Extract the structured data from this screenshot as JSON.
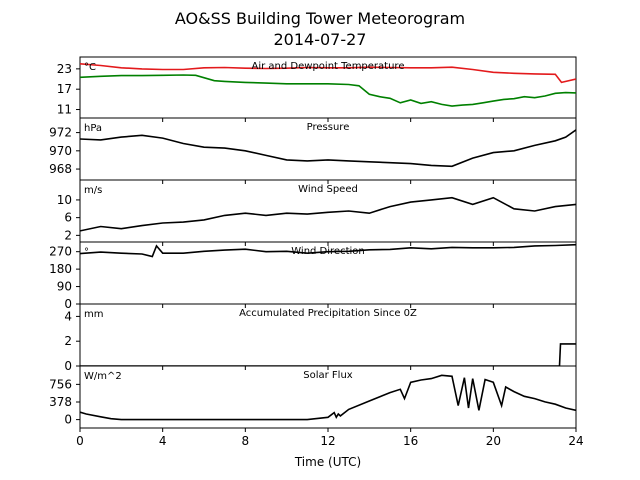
{
  "figure": {
    "title_line1": "AO&SS Building Tower Meteorogram",
    "title_line2": "2014-07-27",
    "xlabel": "Time (UTC)",
    "xlim": [
      0,
      24
    ],
    "xticks": [
      0,
      4,
      8,
      12,
      16,
      20,
      24
    ]
  },
  "chart_data": [
    {
      "type": "line",
      "title": "Air and Dewpoint Temperature",
      "unit": "°C",
      "ylim": [
        8.5,
        26.5
      ],
      "yticks": [
        11,
        17,
        23
      ],
      "series": [
        {
          "color": "#e31a1c",
          "x": [
            0,
            1,
            2,
            3,
            4,
            5,
            6,
            7,
            8,
            9,
            10,
            11,
            12,
            13,
            14,
            15,
            16,
            17,
            18,
            19,
            20,
            21,
            22,
            23,
            23.3,
            24
          ],
          "y": [
            24.5,
            24.0,
            23.3,
            23.0,
            22.8,
            22.8,
            23.3,
            23.4,
            23.2,
            23.1,
            23.2,
            23.4,
            23.3,
            23.3,
            23.5,
            23.4,
            23.3,
            23.3,
            23.5,
            22.8,
            22.0,
            21.7,
            21.5,
            21.4,
            19.0,
            20.0
          ]
        },
        {
          "color": "#008000",
          "x": [
            0,
            1,
            2,
            3,
            4,
            5,
            5.6,
            6.5,
            7,
            8,
            9,
            10,
            11,
            12,
            13,
            13.5,
            14,
            14.5,
            15,
            15.5,
            16,
            16.5,
            17,
            17.5,
            18,
            18.5,
            19,
            19.5,
            20,
            20.5,
            21,
            21.5,
            22,
            22.5,
            23,
            23.5,
            24
          ],
          "y": [
            20.5,
            20.8,
            21.0,
            21.0,
            21.1,
            21.2,
            21.1,
            19.5,
            19.3,
            19.0,
            18.8,
            18.6,
            18.6,
            18.6,
            18.4,
            18.0,
            15.5,
            14.8,
            14.3,
            13.0,
            13.8,
            12.8,
            13.3,
            12.5,
            12.0,
            12.3,
            12.5,
            13.0,
            13.5,
            14.0,
            14.2,
            14.8,
            14.5,
            15.0,
            15.8,
            16.0,
            15.9
          ]
        }
      ]
    },
    {
      "type": "line",
      "title": "Pressure",
      "unit": "hPa",
      "ylim": [
        966.8,
        973.6
      ],
      "yticks": [
        968,
        970,
        972
      ],
      "series": [
        {
          "color": "#000000",
          "x": [
            0,
            1,
            2,
            3,
            4,
            5,
            6,
            7,
            8,
            9,
            10,
            11,
            12,
            13,
            14,
            15,
            16,
            17,
            18,
            19,
            20,
            21,
            22,
            23,
            23.5,
            24
          ],
          "y": [
            971.3,
            971.2,
            971.5,
            971.7,
            971.4,
            970.8,
            970.4,
            970.3,
            970.0,
            969.5,
            969.0,
            968.9,
            969.0,
            968.9,
            968.8,
            968.7,
            968.6,
            968.4,
            968.3,
            969.2,
            969.8,
            970.0,
            970.6,
            971.1,
            971.5,
            972.3
          ]
        }
      ]
    },
    {
      "type": "line",
      "title": "Wind Speed",
      "unit": "m/s",
      "ylim": [
        0.5,
        14.5
      ],
      "yticks": [
        2,
        6,
        10
      ],
      "series": [
        {
          "color": "#000000",
          "x": [
            0,
            1,
            2,
            3,
            4,
            5,
            6,
            7,
            8,
            9,
            10,
            11,
            12,
            13,
            14,
            15,
            16,
            17,
            18,
            19,
            20,
            21,
            22,
            23,
            24
          ],
          "y": [
            3.0,
            4.0,
            3.5,
            4.2,
            4.8,
            5.0,
            5.5,
            6.5,
            7.0,
            6.5,
            7.0,
            6.8,
            7.2,
            7.5,
            7.0,
            8.5,
            9.5,
            10.0,
            10.5,
            9.0,
            10.5,
            8.0,
            7.5,
            8.5,
            9.0
          ]
        }
      ]
    },
    {
      "type": "line",
      "title": "Wind Direction",
      "unit": "°",
      "ylim": [
        0,
        320
      ],
      "yticks": [
        0,
        90,
        180,
        270
      ],
      "series": [
        {
          "color": "#000000",
          "x": [
            0,
            1,
            2,
            3,
            3.5,
            3.7,
            4,
            5,
            6,
            7,
            8,
            9,
            10,
            11,
            12,
            13,
            14,
            15,
            16,
            17,
            18,
            19,
            20,
            21,
            22,
            23,
            24
          ],
          "y": [
            260,
            268,
            262,
            258,
            245,
            300,
            262,
            262,
            272,
            278,
            283,
            270,
            272,
            262,
            270,
            272,
            280,
            282,
            290,
            285,
            292,
            290,
            290,
            292,
            300,
            302,
            306
          ]
        }
      ]
    },
    {
      "type": "line",
      "title": "Accumulated Precipitation Since 0Z",
      "unit": "mm",
      "ylim": [
        0,
        5.0
      ],
      "yticks": [
        0,
        2,
        4
      ],
      "series": [
        {
          "color": "#000000",
          "x": [
            0,
            23.2,
            23.25,
            24
          ],
          "y": [
            0,
            0,
            1.78,
            1.78
          ]
        }
      ]
    },
    {
      "type": "line",
      "title": "Solar Flux",
      "unit": "W/m^2",
      "ylim": [
        -180,
        1150
      ],
      "yticks": [
        0,
        378,
        756
      ],
      "series": [
        {
          "color": "#000000",
          "x": [
            0,
            0.3,
            1,
            1.5,
            2,
            4,
            6,
            8,
            10,
            11,
            12,
            12.3,
            12.4,
            12.5,
            12.6,
            13,
            14,
            15,
            15.5,
            15.7,
            16,
            16.5,
            17,
            17.5,
            18,
            18.3,
            18.6,
            18.8,
            19,
            19.3,
            19.6,
            20,
            20.4,
            20.6,
            21,
            21.5,
            22,
            22.5,
            23,
            23.5,
            24
          ],
          "y": [
            160,
            120,
            60,
            20,
            0,
            0,
            0,
            0,
            0,
            0,
            50,
            150,
            50,
            120,
            80,
            220,
            400,
            580,
            650,
            450,
            800,
            850,
            880,
            950,
            930,
            300,
            900,
            250,
            880,
            200,
            860,
            800,
            300,
            700,
            600,
            500,
            450,
            380,
            330,
            250,
            200
          ]
        }
      ]
    }
  ]
}
